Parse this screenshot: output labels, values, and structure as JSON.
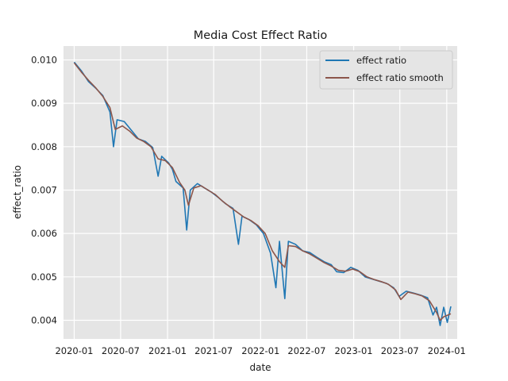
{
  "chart_data": {
    "type": "line",
    "title": "Media Cost Effect Ratio",
    "xlabel": "date",
    "ylabel": "effect_ratio",
    "xlim": [
      "2019-11-20",
      "2024-02-11"
    ],
    "ylim": [
      0.00357,
      0.01032
    ],
    "x_ticks": [
      "2020-01",
      "2020-07",
      "2021-01",
      "2021-07",
      "2022-01",
      "2022-07",
      "2023-01",
      "2023-07",
      "2024-01"
    ],
    "y_ticks": [
      0.004,
      0.005,
      0.006,
      0.007,
      0.008,
      0.009,
      0.01
    ],
    "y_tick_labels": [
      "0.004",
      "0.005",
      "0.006",
      "0.007",
      "0.008",
      "0.009",
      "0.010"
    ],
    "grid": true,
    "legend_position": "top-right",
    "series": [
      {
        "name": "effect ratio",
        "color": "#1f77b4",
        "points": [
          [
            "2020-01-01",
            0.00995
          ],
          [
            "2020-01-29",
            0.00975
          ],
          [
            "2020-02-26",
            0.0095
          ],
          [
            "2020-03-25",
            0.00935
          ],
          [
            "2020-04-22",
            0.00918
          ],
          [
            "2020-05-20",
            0.0088
          ],
          [
            "2020-06-03",
            0.008
          ],
          [
            "2020-06-17",
            0.00862
          ],
          [
            "2020-07-15",
            0.00858
          ],
          [
            "2020-08-12",
            0.00838
          ],
          [
            "2020-09-09",
            0.00818
          ],
          [
            "2020-10-07",
            0.00812
          ],
          [
            "2020-11-04",
            0.00798
          ],
          [
            "2020-11-25",
            0.00732
          ],
          [
            "2020-12-09",
            0.00778
          ],
          [
            "2021-01-06",
            0.00762
          ],
          [
            "2021-01-20",
            0.00748
          ],
          [
            "2021-02-03",
            0.0072
          ],
          [
            "2021-03-03",
            0.00705
          ],
          [
            "2021-03-17",
            0.00608
          ],
          [
            "2021-03-31",
            0.007
          ],
          [
            "2021-04-28",
            0.00715
          ],
          [
            "2021-05-26",
            0.00705
          ],
          [
            "2021-06-23",
            0.00695
          ],
          [
            "2021-07-21",
            0.00682
          ],
          [
            "2021-08-18",
            0.00668
          ],
          [
            "2021-09-15",
            0.00658
          ],
          [
            "2021-10-06",
            0.00575
          ],
          [
            "2021-10-20",
            0.0064
          ],
          [
            "2021-11-17",
            0.00632
          ],
          [
            "2021-12-15",
            0.0062
          ],
          [
            "2022-01-12",
            0.006
          ],
          [
            "2022-02-09",
            0.00555
          ],
          [
            "2022-03-02",
            0.00475
          ],
          [
            "2022-03-16",
            0.00582
          ],
          [
            "2022-04-06",
            0.0045
          ],
          [
            "2022-04-20",
            0.00582
          ],
          [
            "2022-05-18",
            0.00575
          ],
          [
            "2022-06-15",
            0.0056
          ],
          [
            "2022-07-13",
            0.00556
          ],
          [
            "2022-08-10",
            0.00545
          ],
          [
            "2022-09-07",
            0.00535
          ],
          [
            "2022-10-05",
            0.00528
          ],
          [
            "2022-10-26",
            0.00512
          ],
          [
            "2022-11-23",
            0.0051
          ],
          [
            "2022-12-21",
            0.00522
          ],
          [
            "2023-01-18",
            0.00515
          ],
          [
            "2023-02-15",
            0.005
          ],
          [
            "2023-03-15",
            0.00495
          ],
          [
            "2023-04-12",
            0.0049
          ],
          [
            "2023-05-10",
            0.00485
          ],
          [
            "2023-06-07",
            0.00475
          ],
          [
            "2023-06-28",
            0.00455
          ],
          [
            "2023-07-26",
            0.00467
          ],
          [
            "2023-08-23",
            0.00463
          ],
          [
            "2023-09-20",
            0.00458
          ],
          [
            "2023-10-18",
            0.00452
          ],
          [
            "2023-11-08",
            0.00412
          ],
          [
            "2023-11-22",
            0.0043
          ],
          [
            "2023-12-06",
            0.00388
          ],
          [
            "2023-12-20",
            0.0043
          ],
          [
            "2024-01-03",
            0.00395
          ],
          [
            "2024-01-17",
            0.00432
          ]
        ]
      },
      {
        "name": "effect ratio smooth",
        "color": "#8c564b",
        "points": [
          [
            "2020-01-01",
            0.00993
          ],
          [
            "2020-01-29",
            0.00972
          ],
          [
            "2020-02-26",
            0.00953
          ],
          [
            "2020-03-25",
            0.00936
          ],
          [
            "2020-04-22",
            0.00916
          ],
          [
            "2020-05-20",
            0.0089
          ],
          [
            "2020-06-10",
            0.0084
          ],
          [
            "2020-07-08",
            0.00848
          ],
          [
            "2020-08-05",
            0.00836
          ],
          [
            "2020-09-02",
            0.0082
          ],
          [
            "2020-09-30",
            0.00812
          ],
          [
            "2020-10-28",
            0.008
          ],
          [
            "2020-11-25",
            0.00772
          ],
          [
            "2020-12-23",
            0.00768
          ],
          [
            "2021-01-20",
            0.00752
          ],
          [
            "2021-02-17",
            0.00718
          ],
          [
            "2021-03-10",
            0.007
          ],
          [
            "2021-03-24",
            0.00665
          ],
          [
            "2021-04-14",
            0.00705
          ],
          [
            "2021-05-12",
            0.0071
          ],
          [
            "2021-06-09",
            0.007
          ],
          [
            "2021-07-07",
            0.0069
          ],
          [
            "2021-08-04",
            0.00675
          ],
          [
            "2021-09-01",
            0.00662
          ],
          [
            "2021-09-29",
            0.0065
          ],
          [
            "2021-10-27",
            0.00638
          ],
          [
            "2021-11-24",
            0.0063
          ],
          [
            "2021-12-22",
            0.00618
          ],
          [
            "2022-01-19",
            0.006
          ],
          [
            "2022-02-16",
            0.0056
          ],
          [
            "2022-03-16",
            0.00535
          ],
          [
            "2022-04-06",
            0.00522
          ],
          [
            "2022-04-20",
            0.00572
          ],
          [
            "2022-05-18",
            0.0057
          ],
          [
            "2022-06-15",
            0.0056
          ],
          [
            "2022-07-13",
            0.00553
          ],
          [
            "2022-08-10",
            0.00543
          ],
          [
            "2022-09-07",
            0.00533
          ],
          [
            "2022-10-05",
            0.00525
          ],
          [
            "2022-11-02",
            0.00515
          ],
          [
            "2022-11-30",
            0.00513
          ],
          [
            "2022-12-28",
            0.00518
          ],
          [
            "2023-01-25",
            0.00512
          ],
          [
            "2023-02-22",
            0.005
          ],
          [
            "2023-03-22",
            0.00494
          ],
          [
            "2023-04-19",
            0.00489
          ],
          [
            "2023-05-17",
            0.00483
          ],
          [
            "2023-06-14",
            0.0047
          ],
          [
            "2023-07-05",
            0.00448
          ],
          [
            "2023-08-02",
            0.00465
          ],
          [
            "2023-08-30",
            0.00461
          ],
          [
            "2023-09-27",
            0.00456
          ],
          [
            "2023-10-25",
            0.00445
          ],
          [
            "2023-11-22",
            0.00418
          ],
          [
            "2023-12-06",
            0.004
          ],
          [
            "2023-12-20",
            0.00408
          ],
          [
            "2024-01-17",
            0.00415
          ]
        ]
      }
    ]
  }
}
